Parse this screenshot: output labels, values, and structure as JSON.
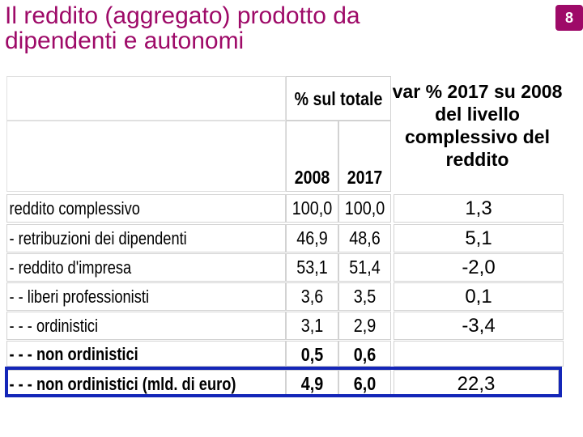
{
  "header": {
    "title_line1": "Il reddito (aggregato) prodotto da",
    "title_line2": "dipendenti e autonomi",
    "page_number": "8"
  },
  "table": {
    "header_pct": "% sul totale",
    "header_years": [
      "2008",
      "2017"
    ],
    "header_var": "var % 2017 su 2008 del livello complessivo del reddito",
    "rows": [
      {
        "label": "reddito complessivo",
        "v2008": "100,0",
        "v2017": "100,0",
        "var": "1,3"
      },
      {
        "label": "- retribuzioni dei dipendenti",
        "v2008": "46,9",
        "v2017": "48,6",
        "var": "5,1"
      },
      {
        "label": "- reddito d'impresa",
        "v2008": "53,1",
        "v2017": "51,4",
        "var": "-2,0"
      },
      {
        "label": "- - liberi professionisti",
        "v2008": "3,6",
        "v2017": "3,5",
        "var": "0,1"
      },
      {
        "label": "- - - ordinistici",
        "v2008": "3,1",
        "v2017": "2,9",
        "var": "-3,4"
      },
      {
        "label": "- - - non ordinistici",
        "v2008": "0,5",
        "v2017": "0,6",
        "var": ""
      },
      {
        "label": "- - - non ordinistici (mld. di euro)",
        "v2008": "4,9",
        "v2017": "6,0",
        "var": "22,3"
      }
    ]
  },
  "colors": {
    "title": "#9e0a68",
    "badge": "#9e0a68",
    "highlight_border": "#1426b8"
  }
}
